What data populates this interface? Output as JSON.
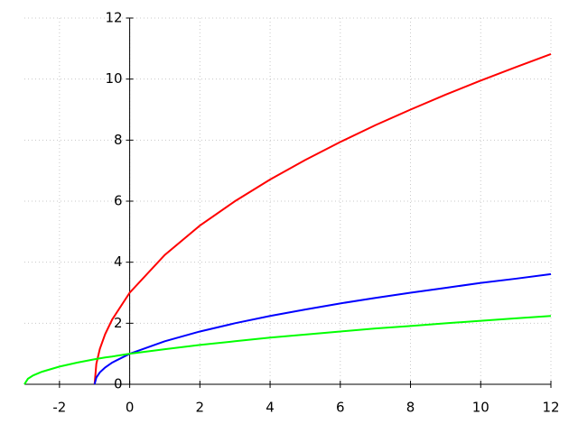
{
  "chart_data": {
    "type": "line",
    "x": [
      -3,
      -2.9,
      -2.75,
      -2.5,
      -2,
      -1.5,
      -1,
      -0.95,
      -0.85,
      -0.7,
      -0.5,
      0,
      1,
      2,
      3,
      4,
      5,
      6,
      7,
      8,
      9,
      10,
      11,
      12
    ],
    "series": [
      {
        "color": "#ff0000",
        "values": [
          null,
          null,
          null,
          null,
          null,
          null,
          0,
          0.67,
          1.16,
          1.64,
          2.12,
          3,
          4.24,
          5.2,
          6,
          6.71,
          7.35,
          7.94,
          8.49,
          9,
          9.49,
          9.95,
          10.39,
          10.82
        ]
      },
      {
        "color": "#0000ff",
        "values": [
          null,
          null,
          null,
          null,
          null,
          null,
          0,
          0.22,
          0.39,
          0.55,
          0.71,
          1,
          1.41,
          1.73,
          2,
          2.24,
          2.45,
          2.65,
          2.83,
          3,
          3.16,
          3.32,
          3.46,
          3.61
        ]
      },
      {
        "color": "#00ff00",
        "values": [
          0,
          0.18,
          0.29,
          0.41,
          0.58,
          0.71,
          0.82,
          0.83,
          0.85,
          0.88,
          0.91,
          1,
          1.15,
          1.29,
          1.41,
          1.53,
          1.63,
          1.73,
          1.83,
          1.91,
          2,
          2.08,
          2.16,
          2.24
        ]
      }
    ],
    "xlim": [
      -3,
      12
    ],
    "ylim": [
      0,
      12
    ],
    "xticks": [
      -2,
      0,
      2,
      4,
      6,
      8,
      10,
      12
    ],
    "yticks": [
      0,
      2,
      4,
      6,
      8,
      10,
      12
    ],
    "grid": true
  }
}
